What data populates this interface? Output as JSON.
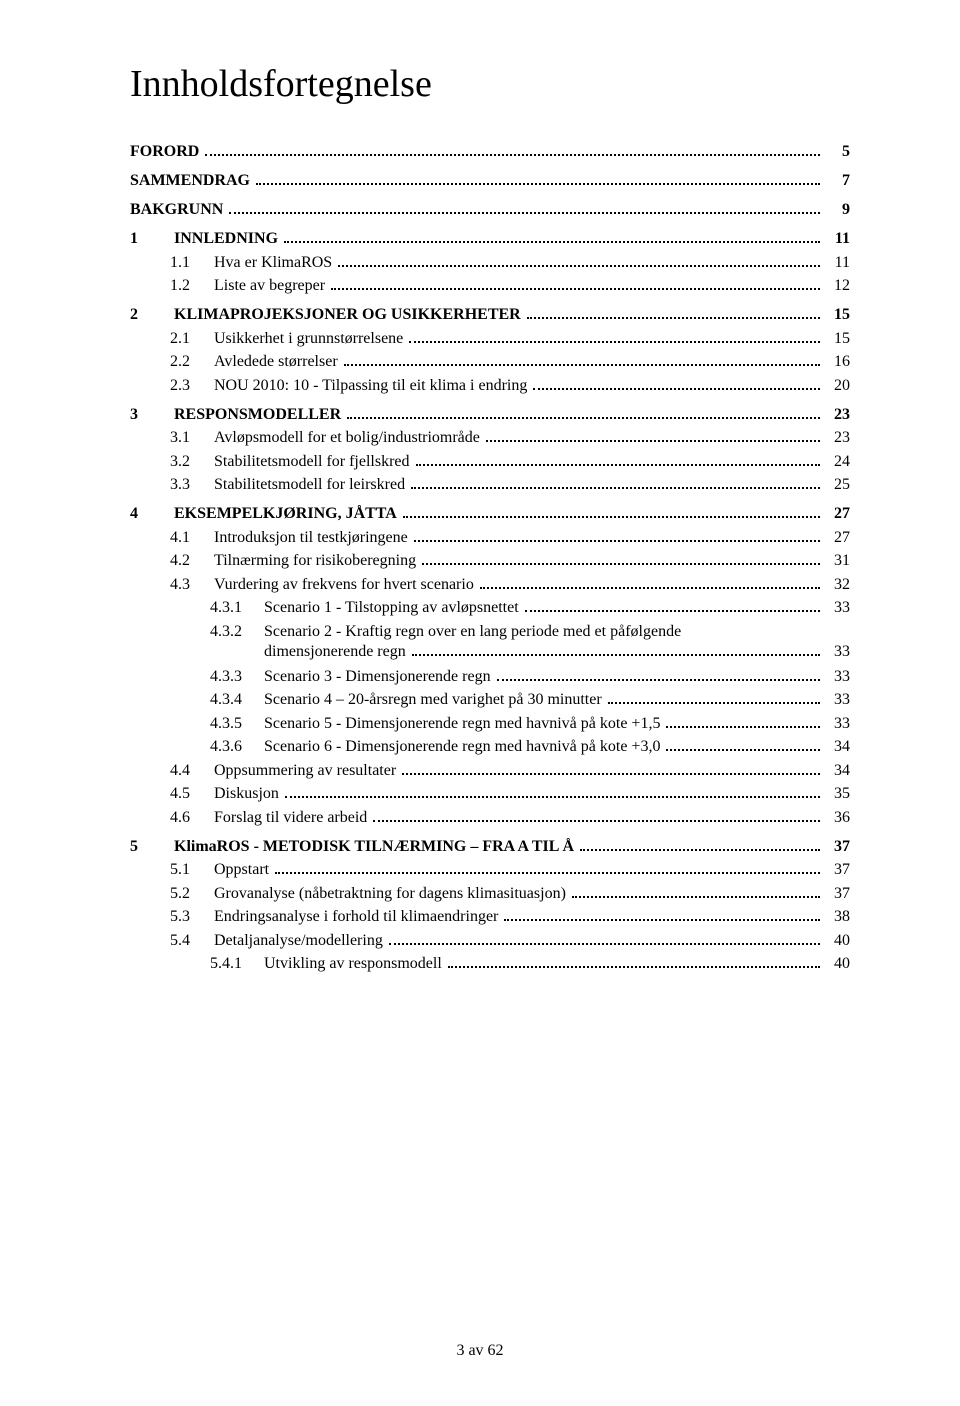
{
  "title": "Innholdsfortegnelse",
  "footer": "3 av 62",
  "toc": [
    {
      "level": 0,
      "num": "",
      "label": "FORORD",
      "page": "5",
      "nonum": true,
      "first": true
    },
    {
      "level": 0,
      "num": "",
      "label": "SAMMENDRAG",
      "page": "7",
      "nonum": true
    },
    {
      "level": 0,
      "num": "",
      "label": "BAKGRUNN",
      "page": "9",
      "nonum": true
    },
    {
      "level": 0,
      "num": "1",
      "label": "INNLEDNING",
      "page": "11"
    },
    {
      "level": 1,
      "num": "1.1",
      "label": "Hva er KlimaROS",
      "page": "11"
    },
    {
      "level": 1,
      "num": "1.2",
      "label": "Liste av begreper",
      "page": "12"
    },
    {
      "level": 0,
      "num": "2",
      "label": "KLIMAPROJEKSJONER OG USIKKERHETER",
      "page": "15"
    },
    {
      "level": 1,
      "num": "2.1",
      "label": "Usikkerhet i grunnstørrelsene",
      "page": "15"
    },
    {
      "level": 1,
      "num": "2.2",
      "label": "Avledede størrelser",
      "page": "16"
    },
    {
      "level": 1,
      "num": "2.3",
      "label": "NOU 2010: 10 - Tilpassing til eit klima i endring",
      "page": "20"
    },
    {
      "level": 0,
      "num": "3",
      "label": "RESPONSMODELLER",
      "page": "23"
    },
    {
      "level": 1,
      "num": "3.1",
      "label": "Avløpsmodell for et bolig/industriområde",
      "page": "23"
    },
    {
      "level": 1,
      "num": "3.2",
      "label": "Stabilitetsmodell for fjellskred",
      "page": "24"
    },
    {
      "level": 1,
      "num": "3.3",
      "label": "Stabilitetsmodell for leirskred",
      "page": "25"
    },
    {
      "level": 0,
      "num": "4",
      "label": "EKSEMPELKJØRING, JÅTTA",
      "page": "27"
    },
    {
      "level": 1,
      "num": "4.1",
      "label": "Introduksjon til testkjøringene",
      "page": "27"
    },
    {
      "level": 1,
      "num": "4.2",
      "label": "Tilnærming for risikoberegning",
      "page": "31"
    },
    {
      "level": 1,
      "num": "4.3",
      "label": "Vurdering av frekvens for hvert scenario",
      "page": "32"
    },
    {
      "level": 2,
      "num": "4.3.1",
      "label": "Scenario 1 - Tilstopping av avløpsnettet",
      "page": "33"
    },
    {
      "level": 2,
      "num": "4.3.2",
      "label": "Scenario  2  -  Kraftig  regn  over  en  lang  periode  med  et  påfølgende",
      "page": "",
      "wrap": "dimensjonerende regn",
      "wrapPage": "33"
    },
    {
      "level": 2,
      "num": "4.3.3",
      "label": "Scenario 3 - Dimensjonerende regn",
      "page": "33"
    },
    {
      "level": 2,
      "num": "4.3.4",
      "label": "Scenario 4 – 20-årsregn med varighet på 30 minutter",
      "page": "33"
    },
    {
      "level": 2,
      "num": "4.3.5",
      "label": "Scenario 5 - Dimensjonerende regn med havnivå på kote +1,5",
      "page": "33"
    },
    {
      "level": 2,
      "num": "4.3.6",
      "label": "Scenario 6 - Dimensjonerende regn med havnivå på kote +3,0",
      "page": "34"
    },
    {
      "level": 1,
      "num": "4.4",
      "label": "Oppsummering av resultater",
      "page": "34"
    },
    {
      "level": 1,
      "num": "4.5",
      "label": "Diskusjon",
      "page": "35"
    },
    {
      "level": 1,
      "num": "4.6",
      "label": "Forslag til videre arbeid",
      "page": "36"
    },
    {
      "level": 0,
      "num": "5",
      "label": "KlimaROS - METODISK TILNÆRMING – FRA A TIL Å",
      "page": "37"
    },
    {
      "level": 1,
      "num": "5.1",
      "label": "Oppstart",
      "page": "37"
    },
    {
      "level": 1,
      "num": "5.2",
      "label": "Grovanalyse (nåbetraktning for dagens klimasituasjon)",
      "page": "37"
    },
    {
      "level": 1,
      "num": "5.3",
      "label": "Endringsanalyse i forhold til klimaendringer",
      "page": "38"
    },
    {
      "level": 1,
      "num": "5.4",
      "label": "Detaljanalyse/modellering",
      "page": "40"
    },
    {
      "level": 2,
      "num": "5.4.1",
      "label": "Utvikling av responsmodell",
      "page": "40"
    }
  ]
}
